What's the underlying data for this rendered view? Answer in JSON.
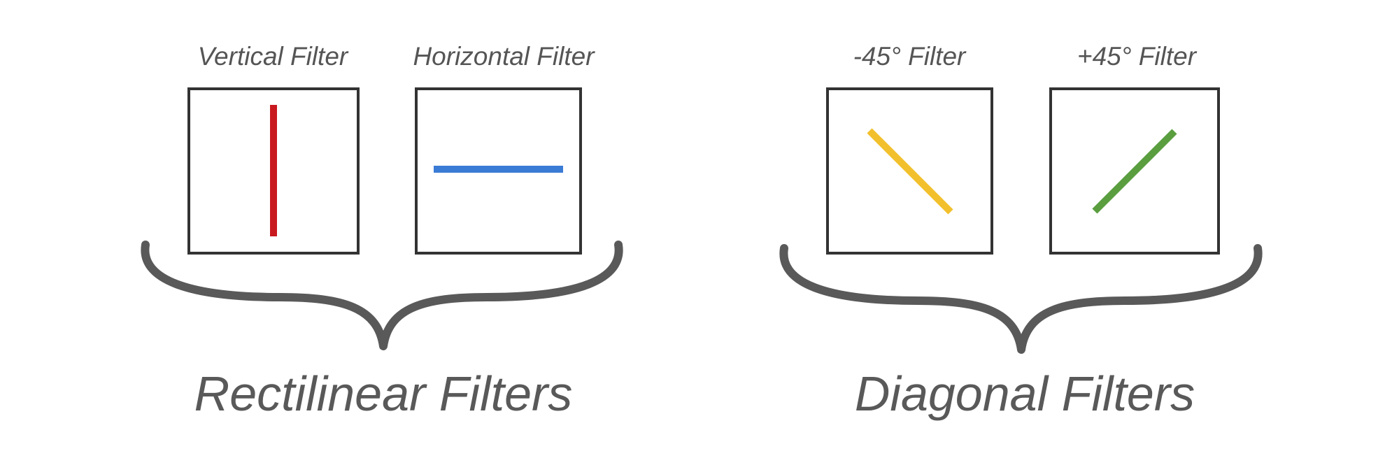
{
  "groups": [
    {
      "label": "Rectilinear Filters",
      "filters": [
        {
          "label": "Vertical Filter",
          "orientation": "vertical",
          "color": "#c8191f"
        },
        {
          "label": "Horizontal Filter",
          "orientation": "horizontal",
          "color": "#3a7bd5"
        }
      ]
    },
    {
      "label": "Diagonal Filters",
      "filters": [
        {
          "label": "-45° Filter",
          "orientation": "-45",
          "color": "#f2c02c"
        },
        {
          "label": "+45° Filter",
          "orientation": "+45",
          "color": "#5a9e3f"
        }
      ]
    }
  ]
}
